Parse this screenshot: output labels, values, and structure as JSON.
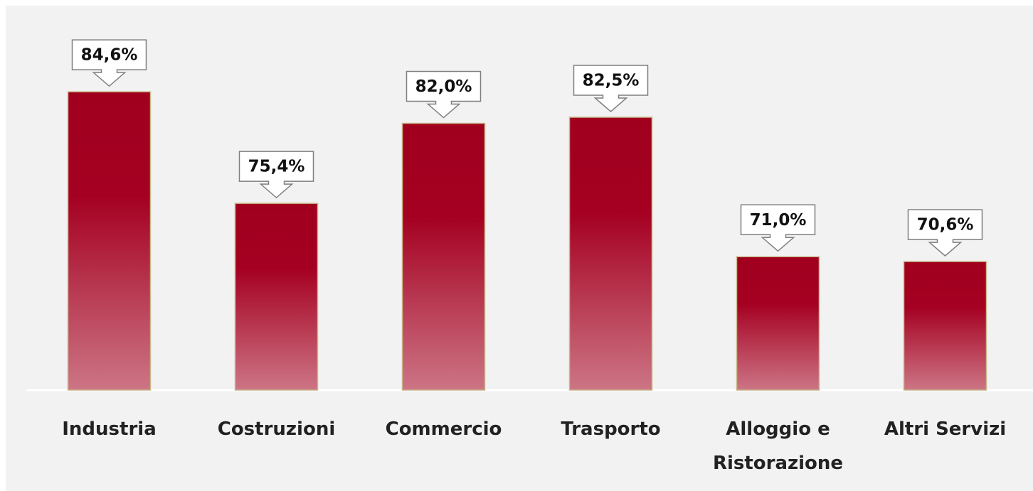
{
  "chart_data": {
    "type": "bar",
    "categories": [
      "Industria",
      "Costruzioni",
      "Commercio",
      "Trasporto",
      "Alloggio e Ristorazione",
      "Altri Servizi"
    ],
    "values": [
      84.6,
      75.4,
      82.0,
      82.5,
      71.0,
      70.6
    ],
    "value_labels": [
      "84,6%",
      "75,4%",
      "82,0%",
      "82,5%",
      "71,0%",
      "70,6%"
    ],
    "color": "#a50021",
    "ylim": [
      60,
      90
    ]
  }
}
